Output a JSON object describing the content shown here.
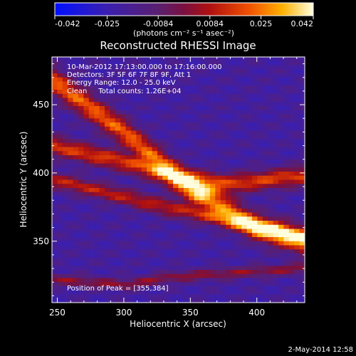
{
  "chart_data": {
    "type": "heatmap",
    "title": "Reconstructed RHESSI Image",
    "xlabel": "Heliocentric X (arcsec)",
    "ylabel": "Heliocentric Y (arcsec)",
    "xlim": [
      246,
      436
    ],
    "ylim": [
      305,
      485
    ],
    "xticks": [
      "250",
      "300",
      "350",
      "400"
    ],
    "xtick_values": [
      250,
      300,
      350,
      400
    ],
    "yticks": [
      "350",
      "400",
      "450"
    ],
    "ytick_values": [
      350,
      400,
      450
    ],
    "colorbar": {
      "range": [
        -0.042,
        0.042
      ],
      "ticks": [
        "-0.042",
        "-0.025",
        "-0.0084",
        "0.0084",
        "0.025",
        "0.042"
      ],
      "tick_values": [
        -0.042,
        -0.025,
        -0.0084,
        0.0084,
        0.025,
        0.042
      ],
      "label": "(photons cm⁻² s⁻¹ asec⁻²)"
    },
    "annotations": [
      "10-Mar-2012 17:13:00.000 to 17:16:00.000",
      "Detectors: 3F 5F 6F 7F 8F 9F, Att 1",
      "Energy Range: 12.0 - 25.0 keV",
      "Clean     Total counts: 1.26E+04"
    ],
    "peak_label": "Position of Peak = [355,384]",
    "peak": [
      355,
      384
    ],
    "ridges": [
      {
        "x": [
          246,
          300,
          355,
          400,
          436
        ],
        "y": [
          468,
          430,
          386,
          360,
          350
        ],
        "amp": 0.042,
        "width": 10
      },
      {
        "x": [
          246,
          300,
          340,
          380,
          436
        ],
        "y": [
          420,
          408,
          396,
          392,
          398
        ],
        "amp": 0.036,
        "width": 7
      },
      {
        "x": [
          246,
          290,
          330,
          380,
          436
        ],
        "y": [
          395,
          385,
          375,
          365,
          352
        ],
        "amp": 0.03,
        "width": 6
      },
      {
        "x": [
          246,
          300,
          340,
          436
        ],
        "y": [
          322,
          318,
          324,
          330
        ],
        "amp": 0.022,
        "width": 4
      }
    ]
  },
  "footer": {
    "date": "2-May-2014 12:58"
  }
}
